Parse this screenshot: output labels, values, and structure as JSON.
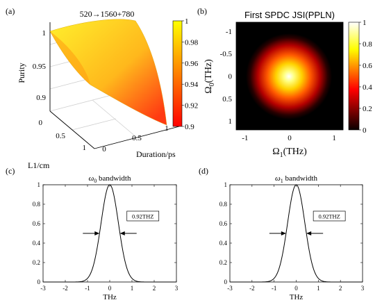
{
  "chart_data": [
    {
      "panel": "(a)",
      "type": "surface",
      "title": "520→1560+780",
      "xlabel": "Duration/ps",
      "ylabel": "L1/cm",
      "zlabel": "Purity",
      "x_ticks": [
        "0",
        "0.5",
        "1"
      ],
      "y_ticks": [
        "0",
        "0.5",
        "1"
      ],
      "z_ticks": [
        "0.9",
        "0.95",
        "1"
      ],
      "zlim": [
        0.9,
        1.0
      ],
      "surface_corners": [
        {
          "duration": 0,
          "l1": 0,
          "purity": 1.0
        },
        {
          "duration": 1,
          "l1": 0,
          "purity": 0.99
        },
        {
          "duration": 0,
          "l1": 1,
          "purity": 0.985
        },
        {
          "duration": 1,
          "l1": 1,
          "purity": 0.9
        }
      ],
      "colorbar": {
        "ticks": [
          "0.9",
          "0.92",
          "0.94",
          "0.96",
          "0.98",
          "1"
        ],
        "range": [
          0.9,
          1.0
        ],
        "colormap": "autumn"
      }
    },
    {
      "panel": "(b)",
      "type": "heatmap",
      "title": "First SPDC JSI(PPLN)",
      "xlabel": "Ω",
      "xlabel_sub": "1",
      "xlabel_unit": "(THz)",
      "ylabel": "Ω",
      "ylabel_sub": "0",
      "ylabel_unit": "(THz)",
      "x_ticks": [
        "-1",
        "0",
        "1"
      ],
      "y_ticks": [
        "-1",
        "-0.5",
        "0",
        "0.5",
        "1"
      ],
      "xlim": [
        -1.2,
        1.2
      ],
      "ylim": [
        -1.2,
        1.2
      ],
      "peak": {
        "x": 0,
        "y": 0,
        "value": 1.0
      },
      "sigma_thz": 0.55,
      "colorbar": {
        "ticks": [
          "0",
          "0.2",
          "0.4",
          "0.6",
          "0.8",
          "1"
        ],
        "range": [
          0,
          1
        ],
        "colormap": "hot"
      }
    },
    {
      "panel": "(c)",
      "type": "line",
      "title_symbol": "ω",
      "title_sub": "0",
      "title_rest": " bandwidth",
      "xlabel": "THz",
      "x_ticks": [
        "-3",
        "-2",
        "-1",
        "0",
        "1",
        "2",
        "3"
      ],
      "y_ticks": [
        "0",
        "0.2",
        "0.4",
        "0.6",
        "0.8",
        "1"
      ],
      "xlim": [
        -3,
        3
      ],
      "ylim": [
        0,
        1
      ],
      "series": [
        {
          "peak_x": 0,
          "peak_y": 1,
          "fwhm": 0.92
        }
      ],
      "annotation": "0.92THZ"
    },
    {
      "panel": "(d)",
      "type": "line",
      "title_symbol": "ω",
      "title_sub": "1",
      "title_rest": " bandwidth",
      "xlabel": "THz",
      "x_ticks": [
        "-3",
        "-2",
        "-1",
        "0",
        "1",
        "2",
        "3"
      ],
      "y_ticks": [
        "0",
        "0.2",
        "0.4",
        "0.6",
        "0.8",
        "1"
      ],
      "xlim": [
        -3,
        3
      ],
      "ylim": [
        0,
        1
      ],
      "series": [
        {
          "peak_x": 0,
          "peak_y": 1,
          "fwhm": 0.92
        }
      ],
      "annotation": "0.92THZ"
    }
  ]
}
